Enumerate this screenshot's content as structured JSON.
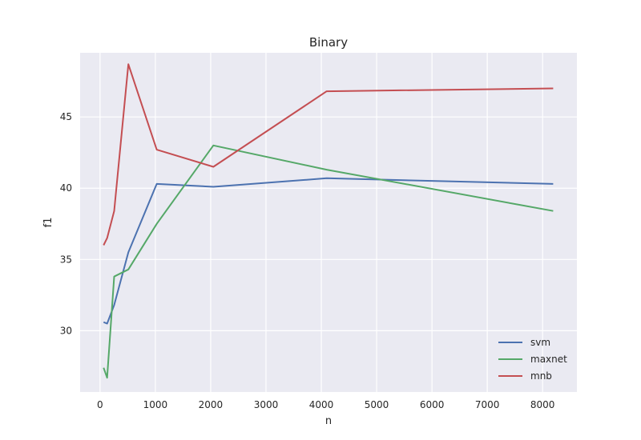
{
  "chart_data": {
    "type": "line",
    "title": "Binary",
    "xlabel": "n",
    "ylabel": "f1",
    "xlim": [
      -360,
      8620
    ],
    "ylim": [
      25.7,
      49.5
    ],
    "xticks": [
      0,
      1000,
      2000,
      3000,
      4000,
      5000,
      6000,
      7000,
      8000
    ],
    "yticks": [
      30,
      35,
      40,
      45
    ],
    "grid": true,
    "legend_position": "lower-right",
    "x": [
      64,
      128,
      256,
      512,
      1024,
      2048,
      4096,
      8192
    ],
    "series": [
      {
        "name": "svm",
        "color": "#4c72b0",
        "values": [
          30.6,
          30.5,
          31.8,
          35.5,
          40.3,
          40.1,
          40.7,
          40.3
        ]
      },
      {
        "name": "maxnet",
        "color": "#55a868",
        "values": [
          27.4,
          26.7,
          33.8,
          34.3,
          37.5,
          43.0,
          41.3,
          38.4
        ]
      },
      {
        "name": "mnb",
        "color": "#c44e52",
        "values": [
          36.0,
          36.5,
          38.4,
          48.7,
          42.7,
          41.5,
          46.8,
          47.0
        ]
      }
    ]
  }
}
